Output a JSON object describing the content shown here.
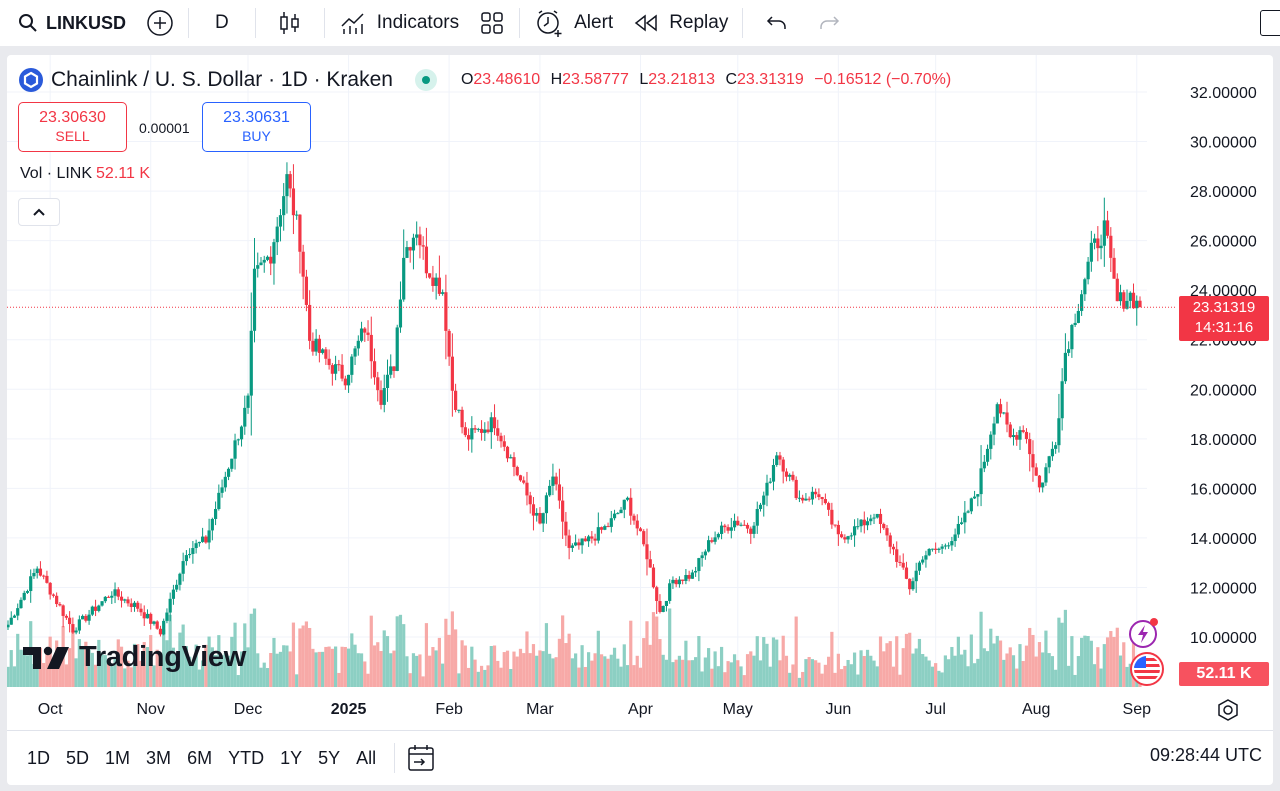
{
  "toolbar": {
    "symbol": "LINKUSD",
    "interval": "D",
    "indicators": "Indicators",
    "alert": "Alert",
    "replay": "Replay"
  },
  "legend": {
    "title": "Chainlink / U. S. Dollar · 1D · Kraken",
    "o_key": "O",
    "o": "23.48610",
    "h_key": "H",
    "h": "23.58777",
    "l_key": "L",
    "l": "23.21813",
    "c_key": "C",
    "c": "23.31319",
    "change": "−0.16512 (−0.70%)"
  },
  "trade": {
    "sell_price": "23.30630",
    "sell_label": "SELL",
    "spread": "0.00001",
    "buy_price": "23.30631",
    "buy_label": "BUY"
  },
  "volume_legend": {
    "label": "Vol · LINK",
    "value": "52.11 K"
  },
  "watermark": "TradingView",
  "price_badge": {
    "price": "23.31319",
    "countdown": "14:31:16"
  },
  "volume_badge": "52.11 K",
  "ranges": [
    "1D",
    "5D",
    "1M",
    "3M",
    "6M",
    "YTD",
    "1Y",
    "5Y",
    "All"
  ],
  "clock": "09:28:44 UTC",
  "colors": {
    "up": "#089981",
    "down": "#f23645",
    "vol_up": "#8ccfc3",
    "vol_down": "#f7a9a7",
    "grid": "#f0f3fa"
  },
  "chart_data": {
    "type": "candlestick",
    "title": "Chainlink / U. S. Dollar · 1D · Kraken",
    "y_axis": {
      "range": [
        8.5,
        33.0
      ],
      "ticks": [
        "32.00000",
        "30.00000",
        "28.00000",
        "26.00000",
        "24.00000",
        "22.00000",
        "20.00000",
        "18.00000",
        "16.00000",
        "14.00000",
        "12.00000",
        "10.00000"
      ]
    },
    "x_axis": {
      "ticks": [
        "Oct",
        "Nov",
        "Dec",
        "2025",
        "Feb",
        "Mar",
        "Apr",
        "May",
        "Jun",
        "Jul",
        "Aug",
        "Sep"
      ]
    },
    "last_price": 23.31319,
    "close_path": [
      {
        "date": "2024-09-18",
        "close": 10.5
      },
      {
        "date": "2024-09-27",
        "close": 12.8
      },
      {
        "date": "2024-10-08",
        "close": 10.3
      },
      {
        "date": "2024-10-20",
        "close": 11.8
      },
      {
        "date": "2024-10-28",
        "close": 11.2
      },
      {
        "date": "2024-11-04",
        "close": 10.2
      },
      {
        "date": "2024-11-12",
        "close": 13.5
      },
      {
        "date": "2024-11-18",
        "close": 13.9
      },
      {
        "date": "2024-11-24",
        "close": 16.5
      },
      {
        "date": "2024-12-01",
        "close": 19.5
      },
      {
        "date": "2024-12-03",
        "close": 24.5
      },
      {
        "date": "2024-12-08",
        "close": 25.5
      },
      {
        "date": "2024-12-13",
        "close": 28.5
      },
      {
        "date": "2024-12-17",
        "close": 26.0
      },
      {
        "date": "2024-12-20",
        "close": 22.0
      },
      {
        "date": "2024-12-26",
        "close": 21.0
      },
      {
        "date": "2024-12-31",
        "close": 20.5
      },
      {
        "date": "2025-01-06",
        "close": 22.5
      },
      {
        "date": "2025-01-11",
        "close": 19.7
      },
      {
        "date": "2025-01-15",
        "close": 21.0
      },
      {
        "date": "2025-01-18",
        "close": 25.5
      },
      {
        "date": "2025-01-22",
        "close": 26.5
      },
      {
        "date": "2025-01-25",
        "close": 25.0
      },
      {
        "date": "2025-01-30",
        "close": 24.0
      },
      {
        "date": "2025-02-02",
        "close": 20.0
      },
      {
        "date": "2025-02-06",
        "close": 18.0
      },
      {
        "date": "2025-02-15",
        "close": 18.7
      },
      {
        "date": "2025-02-24",
        "close": 16.0
      },
      {
        "date": "2025-03-01",
        "close": 14.5
      },
      {
        "date": "2025-03-05",
        "close": 16.5
      },
      {
        "date": "2025-03-10",
        "close": 13.5
      },
      {
        "date": "2025-03-15",
        "close": 13.8
      },
      {
        "date": "2025-03-22",
        "close": 14.5
      },
      {
        "date": "2025-03-28",
        "close": 15.5
      },
      {
        "date": "2025-04-03",
        "close": 13.3
      },
      {
        "date": "2025-04-07",
        "close": 11.0
      },
      {
        "date": "2025-04-11",
        "close": 12.3
      },
      {
        "date": "2025-04-17",
        "close": 12.5
      },
      {
        "date": "2025-04-23",
        "close": 14.0
      },
      {
        "date": "2025-04-30",
        "close": 14.7
      },
      {
        "date": "2025-05-05",
        "close": 14.4
      },
      {
        "date": "2025-05-10",
        "close": 16.0
      },
      {
        "date": "2025-05-13",
        "close": 17.5
      },
      {
        "date": "2025-05-20",
        "close": 15.6
      },
      {
        "date": "2025-05-26",
        "close": 15.8
      },
      {
        "date": "2025-06-01",
        "close": 14.0
      },
      {
        "date": "2025-06-08",
        "close": 14.5
      },
      {
        "date": "2025-06-12",
        "close": 15.0
      },
      {
        "date": "2025-06-18",
        "close": 13.5
      },
      {
        "date": "2025-06-23",
        "close": 12.0
      },
      {
        "date": "2025-06-27",
        "close": 13.3
      },
      {
        "date": "2025-07-03",
        "close": 13.6
      },
      {
        "date": "2025-07-09",
        "close": 14.5
      },
      {
        "date": "2025-07-14",
        "close": 16.0
      },
      {
        "date": "2025-07-20",
        "close": 19.5
      },
      {
        "date": "2025-07-24",
        "close": 18.0
      },
      {
        "date": "2025-07-28",
        "close": 18.5
      },
      {
        "date": "2025-08-02",
        "close": 16.0
      },
      {
        "date": "2025-08-07",
        "close": 18.0
      },
      {
        "date": "2025-08-10",
        "close": 21.5
      },
      {
        "date": "2025-08-14",
        "close": 23.5
      },
      {
        "date": "2025-08-18",
        "close": 25.5
      },
      {
        "date": "2025-08-22",
        "close": 26.5
      },
      {
        "date": "2025-08-26",
        "close": 23.5
      },
      {
        "date": "2025-08-30",
        "close": 23.8
      },
      {
        "date": "2025-09-02",
        "close": 23.3
      }
    ]
  }
}
